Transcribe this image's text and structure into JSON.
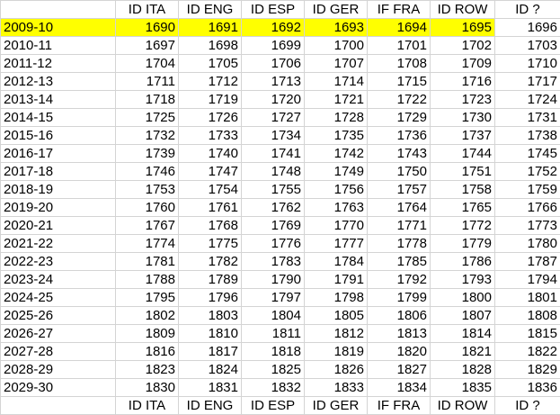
{
  "table": {
    "header": [
      "ID ITA",
      "ID ENG",
      "ID ESP",
      "ID GER",
      "IF FRA",
      "ID ROW",
      "ID ?"
    ],
    "rows": [
      [
        "2009-10",
        1690,
        1691,
        1692,
        1693,
        1694,
        1695,
        1696
      ],
      [
        "2010-11",
        1697,
        1698,
        1699,
        1700,
        1701,
        1702,
        1703
      ],
      [
        "2011-12",
        1704,
        1705,
        1706,
        1707,
        1708,
        1709,
        1710
      ],
      [
        "2012-13",
        1711,
        1712,
        1713,
        1714,
        1715,
        1716,
        1717
      ],
      [
        "2013-14",
        1718,
        1719,
        1720,
        1721,
        1722,
        1723,
        1724
      ],
      [
        "2014-15",
        1725,
        1726,
        1727,
        1728,
        1729,
        1730,
        1731
      ],
      [
        "2015-16",
        1732,
        1733,
        1734,
        1735,
        1736,
        1737,
        1738
      ],
      [
        "2016-17",
        1739,
        1740,
        1741,
        1742,
        1743,
        1744,
        1745
      ],
      [
        "2017-18",
        1746,
        1747,
        1748,
        1749,
        1750,
        1751,
        1752
      ],
      [
        "2018-19",
        1753,
        1754,
        1755,
        1756,
        1757,
        1758,
        1759
      ],
      [
        "2019-20",
        1760,
        1761,
        1762,
        1763,
        1764,
        1765,
        1766
      ],
      [
        "2020-21",
        1767,
        1768,
        1769,
        1770,
        1771,
        1772,
        1773
      ],
      [
        "2021-22",
        1774,
        1775,
        1776,
        1777,
        1778,
        1779,
        1780
      ],
      [
        "2022-23",
        1781,
        1782,
        1783,
        1784,
        1785,
        1786,
        1787
      ],
      [
        "2023-24",
        1788,
        1789,
        1790,
        1791,
        1792,
        1793,
        1794
      ],
      [
        "2024-25",
        1795,
        1796,
        1797,
        1798,
        1799,
        1800,
        1801
      ],
      [
        "2025-26",
        1802,
        1803,
        1804,
        1805,
        1806,
        1807,
        1808
      ],
      [
        "2026-27",
        1809,
        1810,
        1811,
        1812,
        1813,
        1814,
        1815
      ],
      [
        "2027-28",
        1816,
        1817,
        1818,
        1819,
        1820,
        1821,
        1822
      ],
      [
        "2028-29",
        1823,
        1824,
        1825,
        1826,
        1827,
        1828,
        1829
      ],
      [
        "2029-30",
        1830,
        1831,
        1832,
        1833,
        1834,
        1835,
        1836
      ]
    ],
    "footer": [
      "ID ITA",
      "ID ENG",
      "ID ESP",
      "ID GER",
      "IF FRA",
      "ID ROW",
      "ID ?"
    ]
  }
}
